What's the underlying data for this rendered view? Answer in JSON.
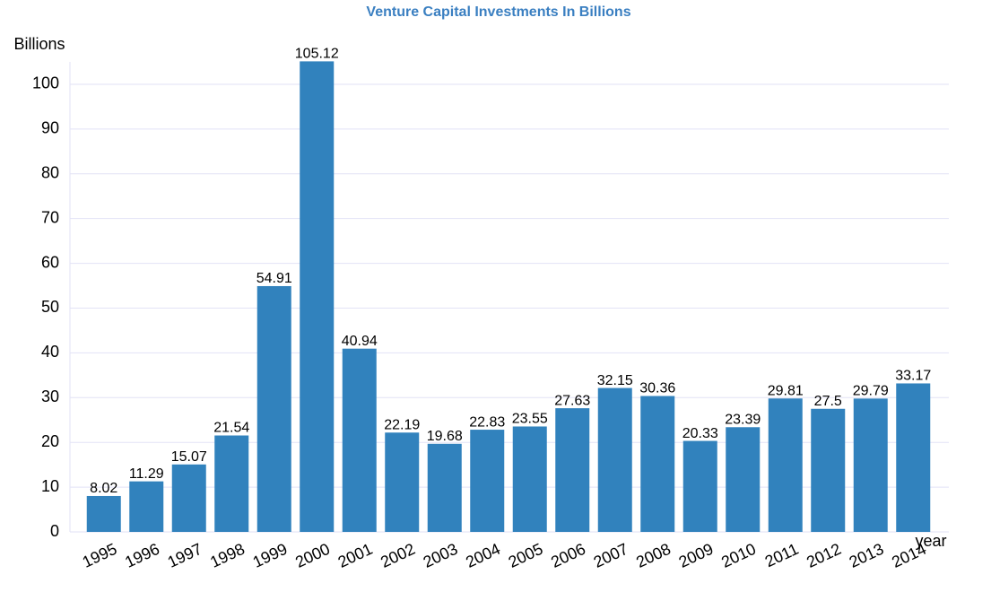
{
  "chart_data": {
    "type": "bar",
    "title": "Venture Capital Investments In Billions",
    "y_label": "Billions",
    "x_label": "year",
    "categories": [
      "1995",
      "1996",
      "1997",
      "1998",
      "1999",
      "2000",
      "2001",
      "2002",
      "2003",
      "2004",
      "2005",
      "2006",
      "2007",
      "2008",
      "2009",
      "2010",
      "2011",
      "2012",
      "2013",
      "2014"
    ],
    "values": [
      8.02,
      11.29,
      15.07,
      21.54,
      54.91,
      105.12,
      40.94,
      22.19,
      19.68,
      22.83,
      23.55,
      27.63,
      32.15,
      30.36,
      20.33,
      23.39,
      29.81,
      27.5,
      29.79,
      33.17
    ],
    "color": "#3182bd",
    "ylim": [
      0,
      105
    ],
    "yticks": [
      0,
      10,
      20,
      30,
      40,
      50,
      60,
      70,
      80,
      90,
      100
    ],
    "grid": true
  }
}
